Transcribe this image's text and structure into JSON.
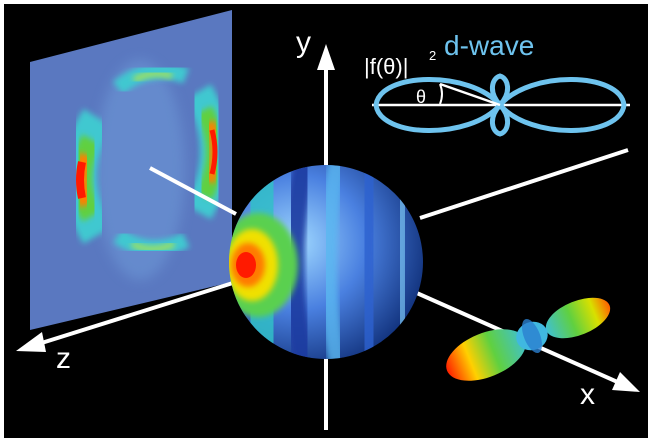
{
  "figure": {
    "axes": {
      "y_label": "y",
      "x_label": "x",
      "z_label": "z"
    },
    "inset": {
      "intensity_label": "|f(θ)|",
      "exponent": "2",
      "wave_label": "d-wave",
      "angle_label": "θ"
    }
  },
  "colors": {
    "background": "#000000",
    "frame": "#ffffff",
    "axis": "#ffffff",
    "inset_curve": "#6ec3ee",
    "inset_text": "#6ec3ee",
    "screen": "#5a78c0",
    "sphere_base": "#3d5fc9"
  },
  "icons": [
    "sphere-wavefunction",
    "projection-screen",
    "d-wave-polar-plot",
    "dumbbell-lobe"
  ]
}
